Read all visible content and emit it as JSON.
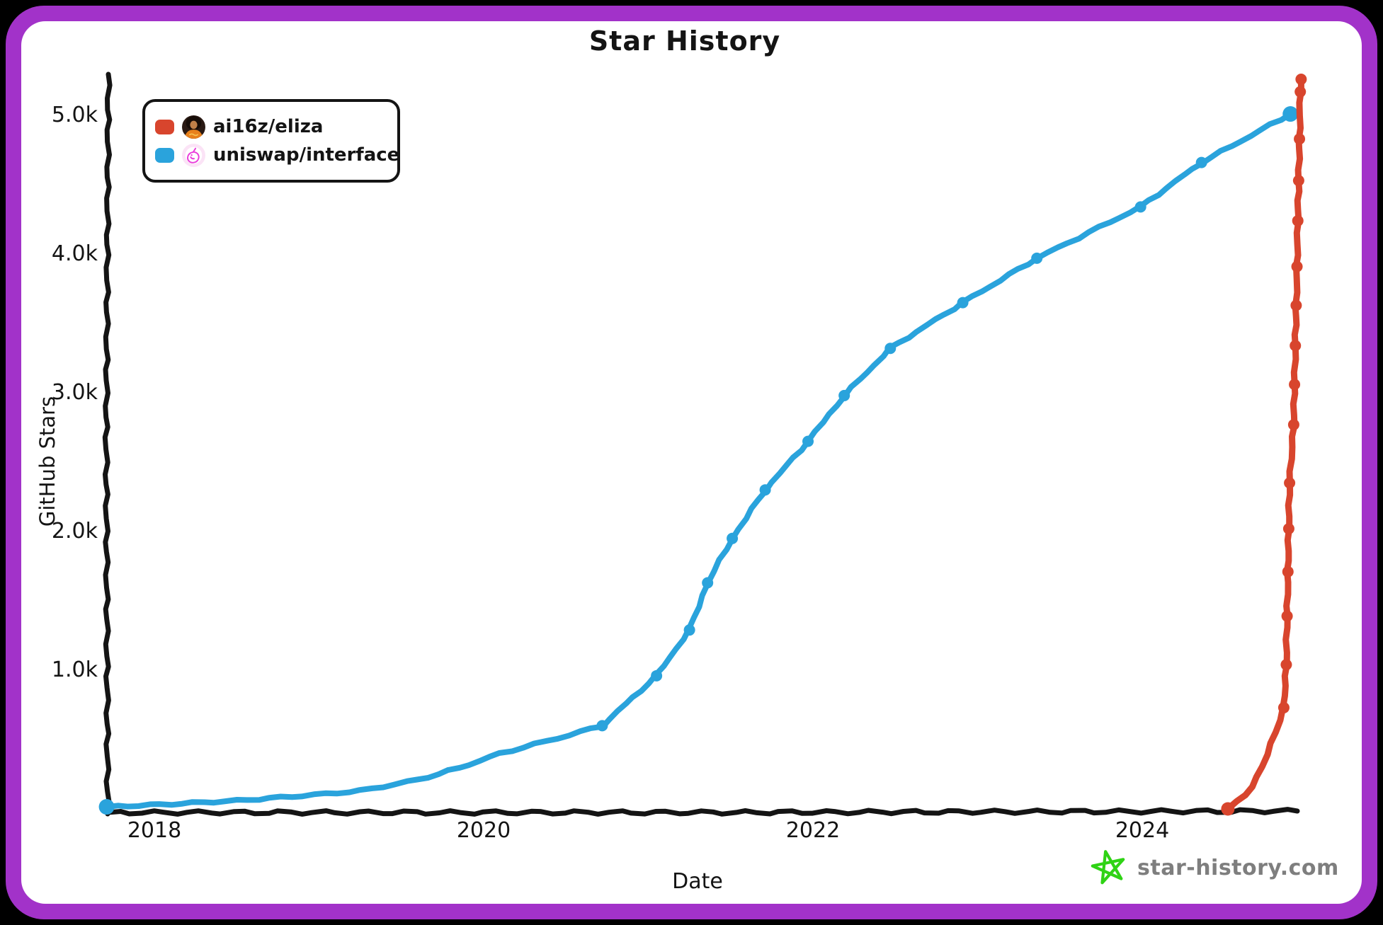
{
  "title": "Star History",
  "frame": {
    "border_color": "#a232c9",
    "canvas_color": "#ffffff",
    "outside_color": "#000000",
    "ink_color": "#141414"
  },
  "axes": {
    "x": {
      "label": "Date",
      "ticks": [
        {
          "label": "2018",
          "year": 2018
        },
        {
          "label": "2020",
          "year": 2020
        },
        {
          "label": "2022",
          "year": 2022
        },
        {
          "label": "2024",
          "year": 2024
        }
      ]
    },
    "y": {
      "label": "GitHub Stars",
      "ticks": [
        {
          "label": "1.0k",
          "value": 1000
        },
        {
          "label": "2.0k",
          "value": 2000
        },
        {
          "label": "3.0k",
          "value": 3000
        },
        {
          "label": "4.0k",
          "value": 4000
        },
        {
          "label": "5.0k",
          "value": 5000
        }
      ]
    }
  },
  "legend": {
    "items": [
      {
        "label": "ai16z/eliza",
        "color": "#d8452d",
        "avatar_icon": "ai16z-avatar-icon"
      },
      {
        "label": "uniswap/interface",
        "color": "#2aa3dc",
        "avatar_icon": "uniswap-unicorn-icon"
      }
    ]
  },
  "watermark": {
    "label": "star-history.com",
    "star_color": "#2fd315",
    "text_color": "#7e7e7e"
  },
  "chart_data": {
    "type": "line",
    "title": "Star History",
    "xlabel": "Date",
    "ylabel": "GitHub Stars",
    "x_range": [
      2017.65,
      2025.1
    ],
    "y_range": [
      0,
      5450
    ],
    "x_ticks": [
      2018,
      2020,
      2022,
      2024
    ],
    "y_ticks": [
      1000,
      2000,
      3000,
      4000,
      5000
    ],
    "grid": false,
    "legend_position": "top-left",
    "series": [
      {
        "name": "uniswap/interface",
        "color": "#2aa3dc",
        "points": [
          {
            "x": 2017.71,
            "y": 15,
            "dot": true
          },
          {
            "x": 2018.1,
            "y": 35
          },
          {
            "x": 2018.5,
            "y": 60
          },
          {
            "x": 2018.9,
            "y": 95
          },
          {
            "x": 2019.25,
            "y": 130
          },
          {
            "x": 2019.6,
            "y": 210
          },
          {
            "x": 2019.85,
            "y": 295
          },
          {
            "x": 2020.1,
            "y": 400
          },
          {
            "x": 2020.45,
            "y": 510
          },
          {
            "x": 2020.72,
            "y": 600,
            "dot": true
          },
          {
            "x": 2021.05,
            "y": 960,
            "dot": true
          },
          {
            "x": 2021.25,
            "y": 1290,
            "dot": true
          },
          {
            "x": 2021.36,
            "y": 1630,
            "dot": true
          },
          {
            "x": 2021.51,
            "y": 1950,
            "dot": true
          },
          {
            "x": 2021.71,
            "y": 2300,
            "dot": true
          },
          {
            "x": 2021.97,
            "y": 2650,
            "dot": true
          },
          {
            "x": 2022.19,
            "y": 2980,
            "dot": true
          },
          {
            "x": 2022.47,
            "y": 3320,
            "dot": true
          },
          {
            "x": 2022.91,
            "y": 3650,
            "dot": true
          },
          {
            "x": 2023.36,
            "y": 3970,
            "dot": true
          },
          {
            "x": 2023.99,
            "y": 4340,
            "dot": true
          },
          {
            "x": 2024.36,
            "y": 4660,
            "dot": true
          },
          {
            "x": 2024.9,
            "y": 5010,
            "dot": true
          }
        ]
      },
      {
        "name": "ai16z/eliza",
        "color": "#d8452d",
        "points": [
          {
            "x": 2024.52,
            "y": 0,
            "dot": true
          },
          {
            "x": 2024.63,
            "y": 100
          },
          {
            "x": 2024.73,
            "y": 300
          },
          {
            "x": 2024.81,
            "y": 560
          },
          {
            "x": 2024.86,
            "y": 730,
            "dot": true
          },
          {
            "x": 2024.875,
            "y": 1040,
            "dot": true
          },
          {
            "x": 2024.88,
            "y": 1390,
            "dot": true
          },
          {
            "x": 2024.885,
            "y": 1710,
            "dot": true
          },
          {
            "x": 2024.89,
            "y": 2020,
            "dot": true
          },
          {
            "x": 2024.895,
            "y": 2350,
            "dot": true
          },
          {
            "x": 2024.92,
            "y": 2770,
            "dot": true
          },
          {
            "x": 2024.925,
            "y": 3060,
            "dot": true
          },
          {
            "x": 2024.93,
            "y": 3340,
            "dot": true
          },
          {
            "x": 2024.935,
            "y": 3630,
            "dot": true
          },
          {
            "x": 2024.94,
            "y": 3910,
            "dot": true
          },
          {
            "x": 2024.945,
            "y": 4240,
            "dot": true
          },
          {
            "x": 2024.95,
            "y": 4530,
            "dot": true
          },
          {
            "x": 2024.955,
            "y": 4830,
            "dot": true
          },
          {
            "x": 2024.96,
            "y": 5170,
            "dot": true
          },
          {
            "x": 2024.965,
            "y": 5260,
            "dot": true
          }
        ]
      }
    ]
  }
}
